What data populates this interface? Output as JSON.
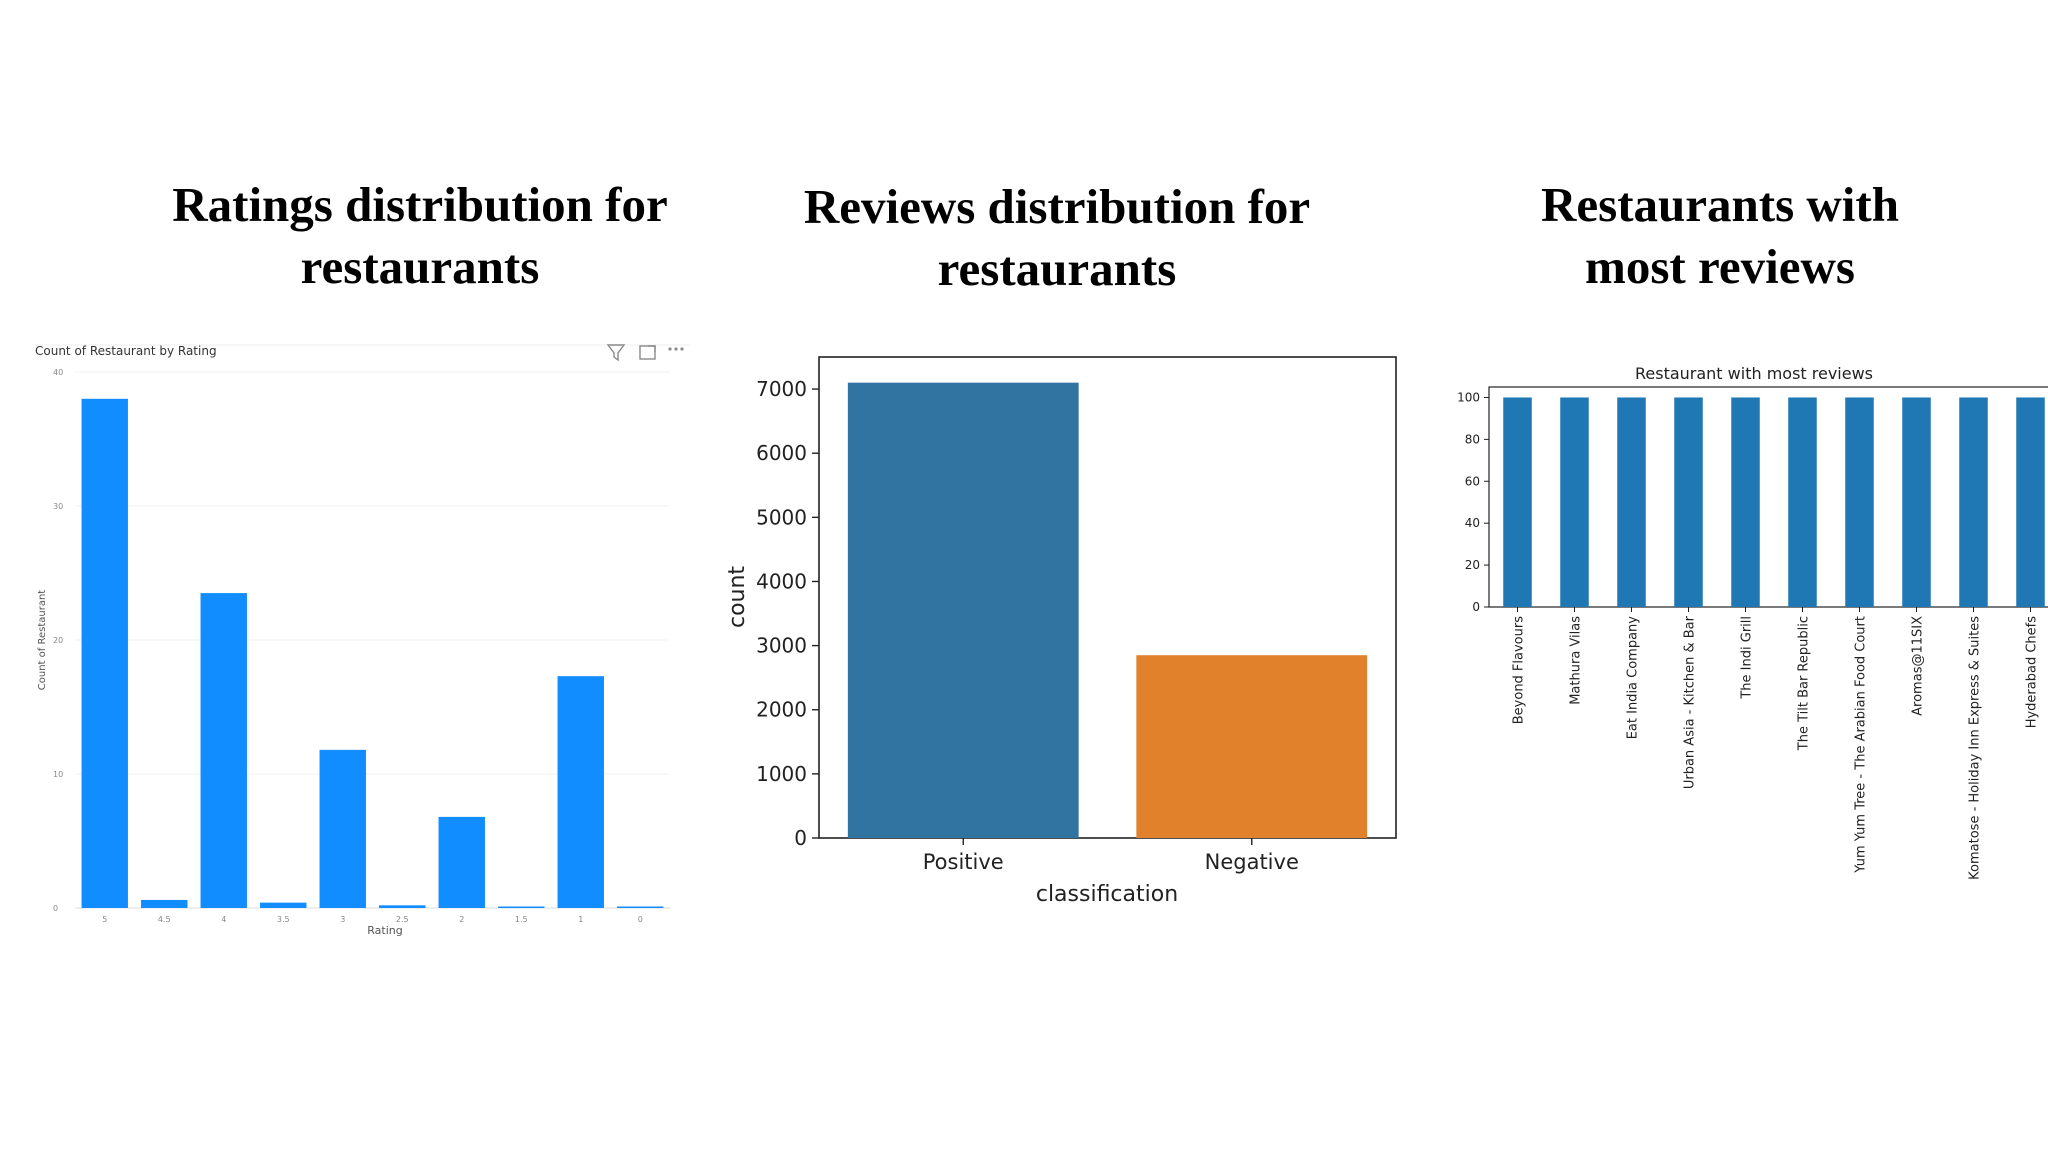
{
  "slide": {
    "titles": [
      {
        "line1": "Ratings distribution for",
        "line2": "restaurants"
      },
      {
        "line1": "Reviews distribution for",
        "line2": "restaurants"
      },
      {
        "line1": "Restaurants with",
        "line2": "most reviews"
      }
    ]
  },
  "chart_data": [
    {
      "type": "bar",
      "title": "Count of Restaurant by Rating",
      "xlabel": "Rating",
      "ylabel": "Count of Restaurant",
      "categories": [
        "5",
        "4.5",
        "4",
        "3.5",
        "3",
        "2.5",
        "2",
        "1.5",
        "1",
        "0"
      ],
      "values": [
        38,
        0.6,
        23.5,
        0.4,
        11.8,
        0.2,
        6.8,
        0.1,
        17.3,
        0.1
      ],
      "yticks": [
        "0",
        "10",
        "20",
        "30",
        "40"
      ],
      "ylim": [
        0,
        40
      ],
      "color": "#118dff",
      "grid": true,
      "toolbar_icons": [
        "filter-icon",
        "focus-mode-icon",
        "more-options-icon"
      ]
    },
    {
      "type": "bar",
      "title": "",
      "xlabel": "classification",
      "ylabel": "count",
      "categories": [
        "Positive",
        "Negative"
      ],
      "values": [
        7100,
        2850
      ],
      "colors": [
        "#3274a1",
        "#e1812c"
      ],
      "yticks": [
        0,
        1000,
        2000,
        3000,
        4000,
        5000,
        6000,
        7000
      ],
      "ylim": [
        0,
        7500
      ],
      "grid": false
    },
    {
      "type": "bar",
      "title": "Restaurant with most reviews",
      "xlabel": "",
      "ylabel": "",
      "categories": [
        "Beyond Flavours",
        "Mathura Vilas",
        "Eat India Company",
        "Urban Asia - Kitchen & Bar",
        "The Indi Grill",
        "The Tilt Bar Republic",
        "Yum Yum Tree - The Arabian Food Court",
        "Aromas@11SIX",
        "Komatose - Holiday Inn Express & Suites",
        "Hyderabad Chefs"
      ],
      "values": [
        100,
        100,
        100,
        100,
        100,
        100,
        100,
        100,
        100,
        100
      ],
      "yticks": [
        0,
        20,
        40,
        60,
        80,
        100
      ],
      "ylim": [
        0,
        105
      ],
      "color": "#1f77b4",
      "grid": false
    }
  ]
}
